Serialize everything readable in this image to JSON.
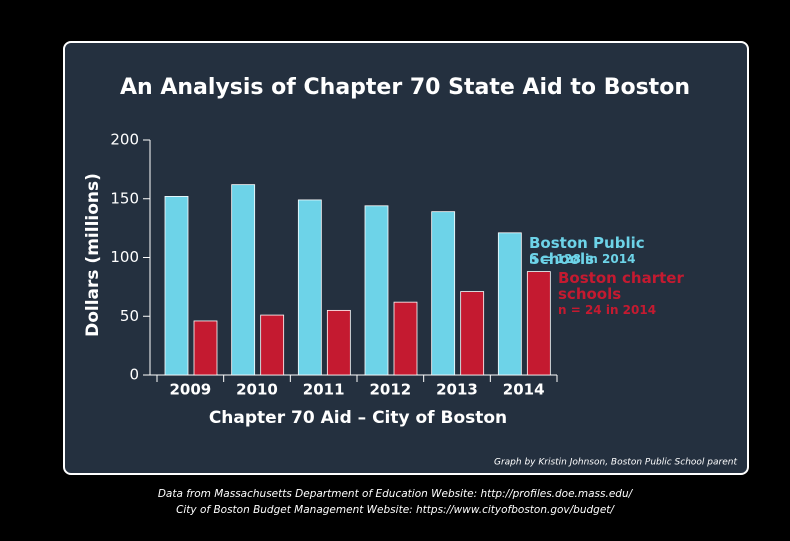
{
  "chart_data": {
    "type": "bar",
    "title": "An Analysis of Chapter 70 State Aid to Boston",
    "xlabel": "Chapter 70 Aid – City of Boston",
    "ylabel": "Dollars (millions)",
    "categories": [
      "2009",
      "2010",
      "2011",
      "2012",
      "2013",
      "2014"
    ],
    "series": [
      {
        "name": "Boston Public Schools",
        "note": "n = 128 in 2014",
        "color": "#6dd3e8",
        "values": [
          152,
          162,
          149,
          144,
          139,
          121
        ]
      },
      {
        "name": "Boston charter schools",
        "note": "n = 24 in 2014",
        "color": "#c41a30",
        "values": [
          46,
          51,
          55,
          62,
          71,
          88
        ]
      }
    ],
    "ylim": [
      0,
      200
    ],
    "yticks": [
      0,
      50,
      100,
      150,
      200
    ],
    "credit": "Graph by Kristin Johnson, Boston Public School parent",
    "sources": [
      "Data from Massachusetts Department of Education Website: http://profiles.doe.mass.edu/",
      "City of Boston Budget Management Website: https://www.cityofboston.gov/budget/"
    ]
  }
}
